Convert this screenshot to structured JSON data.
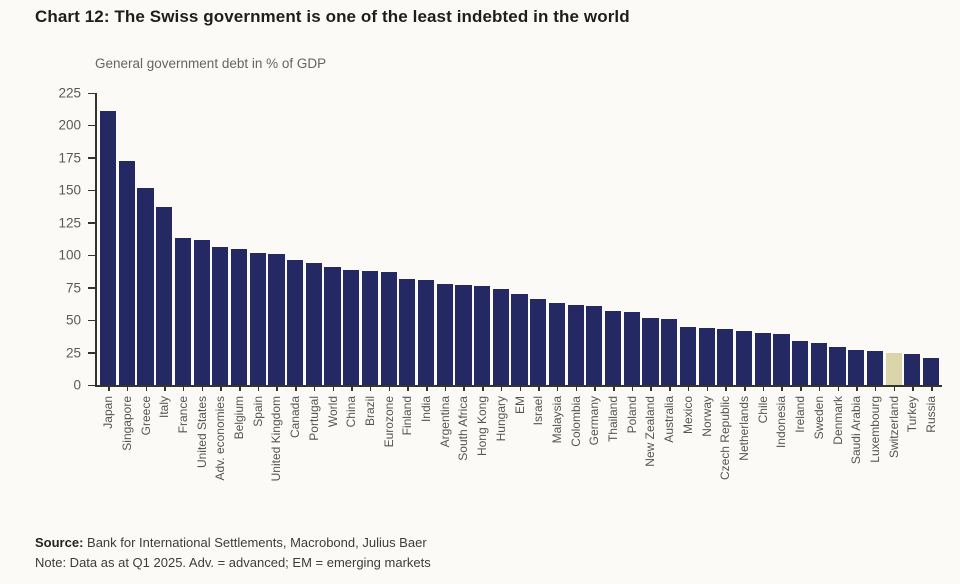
{
  "title": "Chart 12: The Swiss government is one of the least indebted in the world",
  "chart_data": {
    "type": "bar",
    "title": "General government debt in % of GDP",
    "xlabel": "",
    "ylabel": "General government debt in % of GDP",
    "ylim": [
      0,
      225
    ],
    "ytick_step": 25,
    "grid": false,
    "legend": false,
    "bar_color": "#242963",
    "highlight_category": "Switzerland",
    "highlight_color": "#dbd5ab",
    "categories": [
      "Japan",
      "Singapore",
      "Greece",
      "Italy",
      "France",
      "United States",
      "Adv. economies",
      "Belgium",
      "Spain",
      "United Kingdom",
      "Canada",
      "Portugal",
      "World",
      "China",
      "Brazil",
      "Eurozone",
      "Finland",
      "India",
      "Argentina",
      "South Africa",
      "Hong Kong",
      "Hungary",
      "EM",
      "Israel",
      "Malaysia",
      "Colombia",
      "Germany",
      "Thailand",
      "Poland",
      "New Zealand",
      "Australia",
      "Mexico",
      "Norway",
      "Czech Republic",
      "Netherlands",
      "Chile",
      "Indonesia",
      "Ireland",
      "Sweden",
      "Denmark",
      "Saudi Arabia",
      "Luxembourg",
      "Switzerland",
      "Turkey",
      "Russia"
    ],
    "values": [
      211,
      173,
      152,
      137,
      113,
      112,
      106,
      105,
      102,
      101,
      96,
      94,
      91,
      89,
      88,
      87,
      82,
      81,
      78,
      77,
      76,
      74,
      70,
      66,
      63,
      62,
      61,
      57,
      56,
      52,
      51,
      45,
      44,
      43,
      42,
      40,
      39,
      34,
      32,
      29,
      27,
      26,
      25,
      24,
      21
    ]
  },
  "footer": {
    "source_label": "Source:",
    "source_text": " Bank for International Settlements, Macrobond, Julius Baer",
    "note_text": "Note: Data as at Q1 2025. Adv. = advanced; EM = emerging markets"
  }
}
